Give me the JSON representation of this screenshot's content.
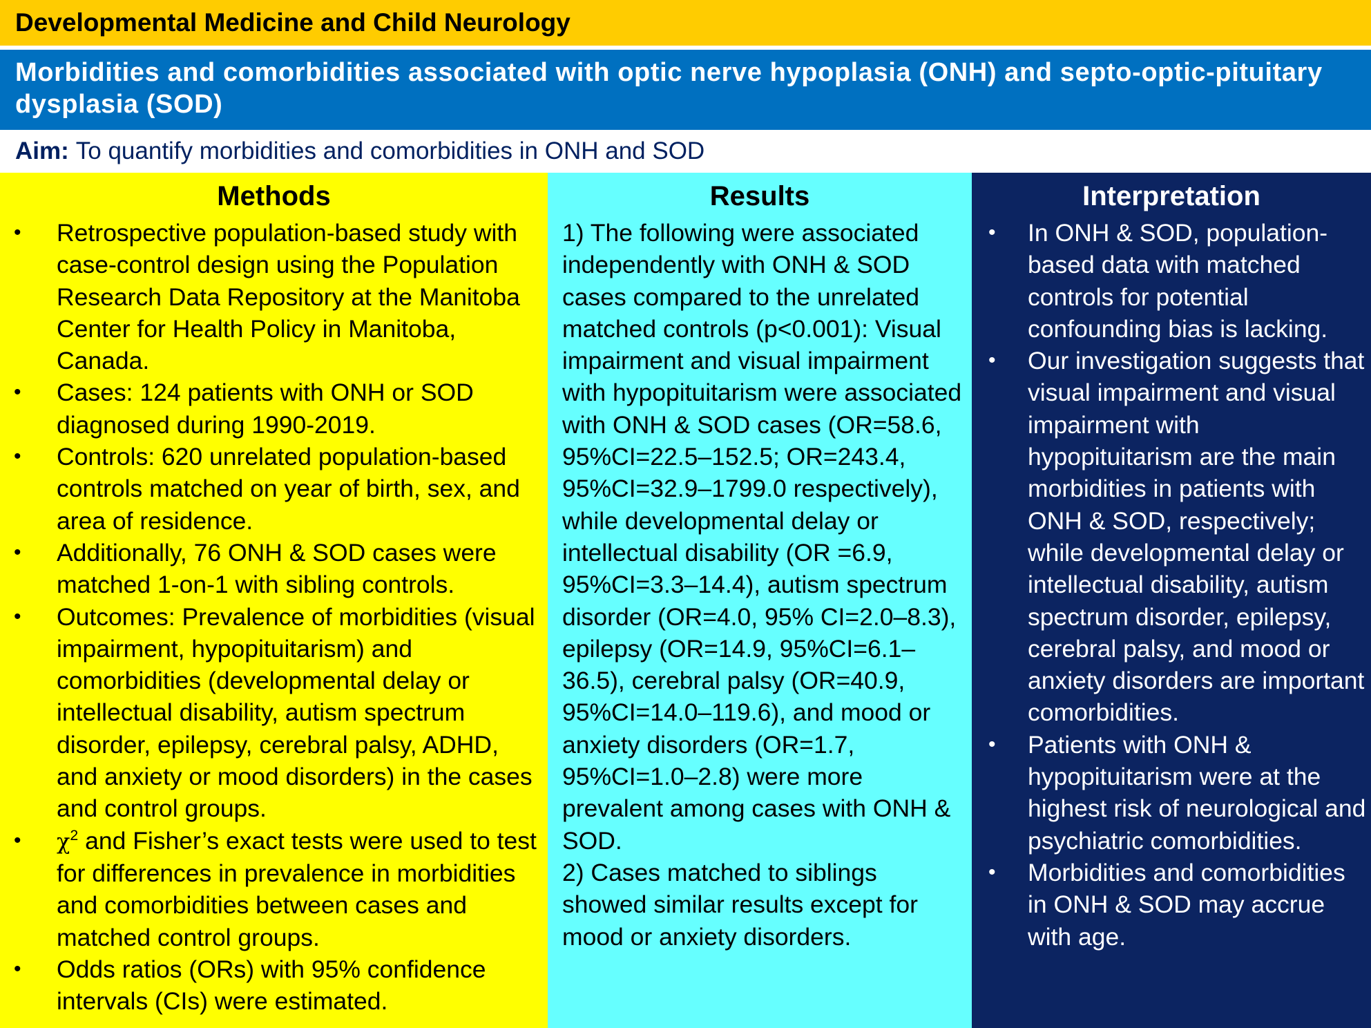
{
  "journal": "Developmental Medicine and Child Neurology",
  "title": "Morbidities and comorbidities associated with optic nerve hypoplasia (ONH) and septo-optic-pituitary  dysplasia (SOD)",
  "aim": {
    "label": "Aim:",
    "text": "To quantify morbidities and comorbidities in ONH and SOD"
  },
  "methods": {
    "heading": "Methods",
    "bullet_symbol": "•",
    "items": [
      "Retrospective population-based study with case-control design using the Population Research Data Repository at the Manitoba Center for Health Policy in Manitoba, Canada.",
      "Cases: 124 patients with ONH or SOD diagnosed during 1990-2019.",
      "Controls: 620 unrelated population-based controls matched on year of birth, sex, and area of residence.",
      "Additionally, 76 ONH & SOD cases were matched 1-on-1 with sibling controls.",
      "Outcomes: Prevalence of morbidities (visual impairment, hypopituitarism) and comorbidities (developmental delay or intellectual disability, autism spectrum disorder, epilepsy, cerebral palsy, ADHD, and anxiety or mood disorders) in the cases and control groups."
    ],
    "chi_item": {
      "symbol": "χ",
      "superscript": "2",
      "text": " and Fisher’s exact tests were used to test for differences in prevalence in morbidities and comorbidities between cases and matched control groups."
    },
    "last_item": "Odds ratios (ORs) with 95% confidence intervals (CIs) were estimated."
  },
  "results": {
    "heading": "Results",
    "paragraphs": [
      "1) The following were associated independently with ONH & SOD cases compared to the unrelated matched controls (p<0.001): Visual impairment and visual impairment with hypopituitarism were associated with ONH & SOD cases (OR=58.6, 95%CI=22.5–152.5; OR=243.4, 95%CI=32.9–1799.0 respectively), while developmental delay or intellectual disability (OR =6.9, 95%CI=3.3–14.4), autism spectrum disorder (OR=4.0, 95% CI=2.0–8.3), epilepsy (OR=14.9, 95%CI=6.1–36.5), cerebral palsy (OR=40.9, 95%CI=14.0–119.6), and mood or anxiety disorders (OR=1.7, 95%CI=1.0–2.8) were more prevalent among cases with ONH & SOD.",
      "2) Cases matched to siblings showed similar results except for mood or anxiety disorders."
    ]
  },
  "interpretation": {
    "heading": "Interpretation",
    "bullet_symbol": "•",
    "items": [
      "In ONH & SOD, population-based data with matched controls for potential confounding bias is lacking.",
      "Our investigation suggests that visual impairment and visual impairment with hypopituitarism are the main morbidities in patients with ONH & SOD, respectively; while developmental delay or intellectual disability, autism spectrum disorder, epilepsy, cerebral palsy, and mood or anxiety disorders are important comorbidities.",
      "Patients with ONH & hypopituitarism were at the highest risk of neurological and psychiatric comorbidities.",
      "Morbidities and comorbidities in ONH & SOD may accrue with age."
    ]
  },
  "colors": {
    "journal_bar": "#FFCC00",
    "title_bar": "#0070C0",
    "aim_text": "#002060",
    "methods_bg": "#FFFF00",
    "results_bg": "#66FFFF",
    "interpretation_bg": "#0C2461"
  }
}
